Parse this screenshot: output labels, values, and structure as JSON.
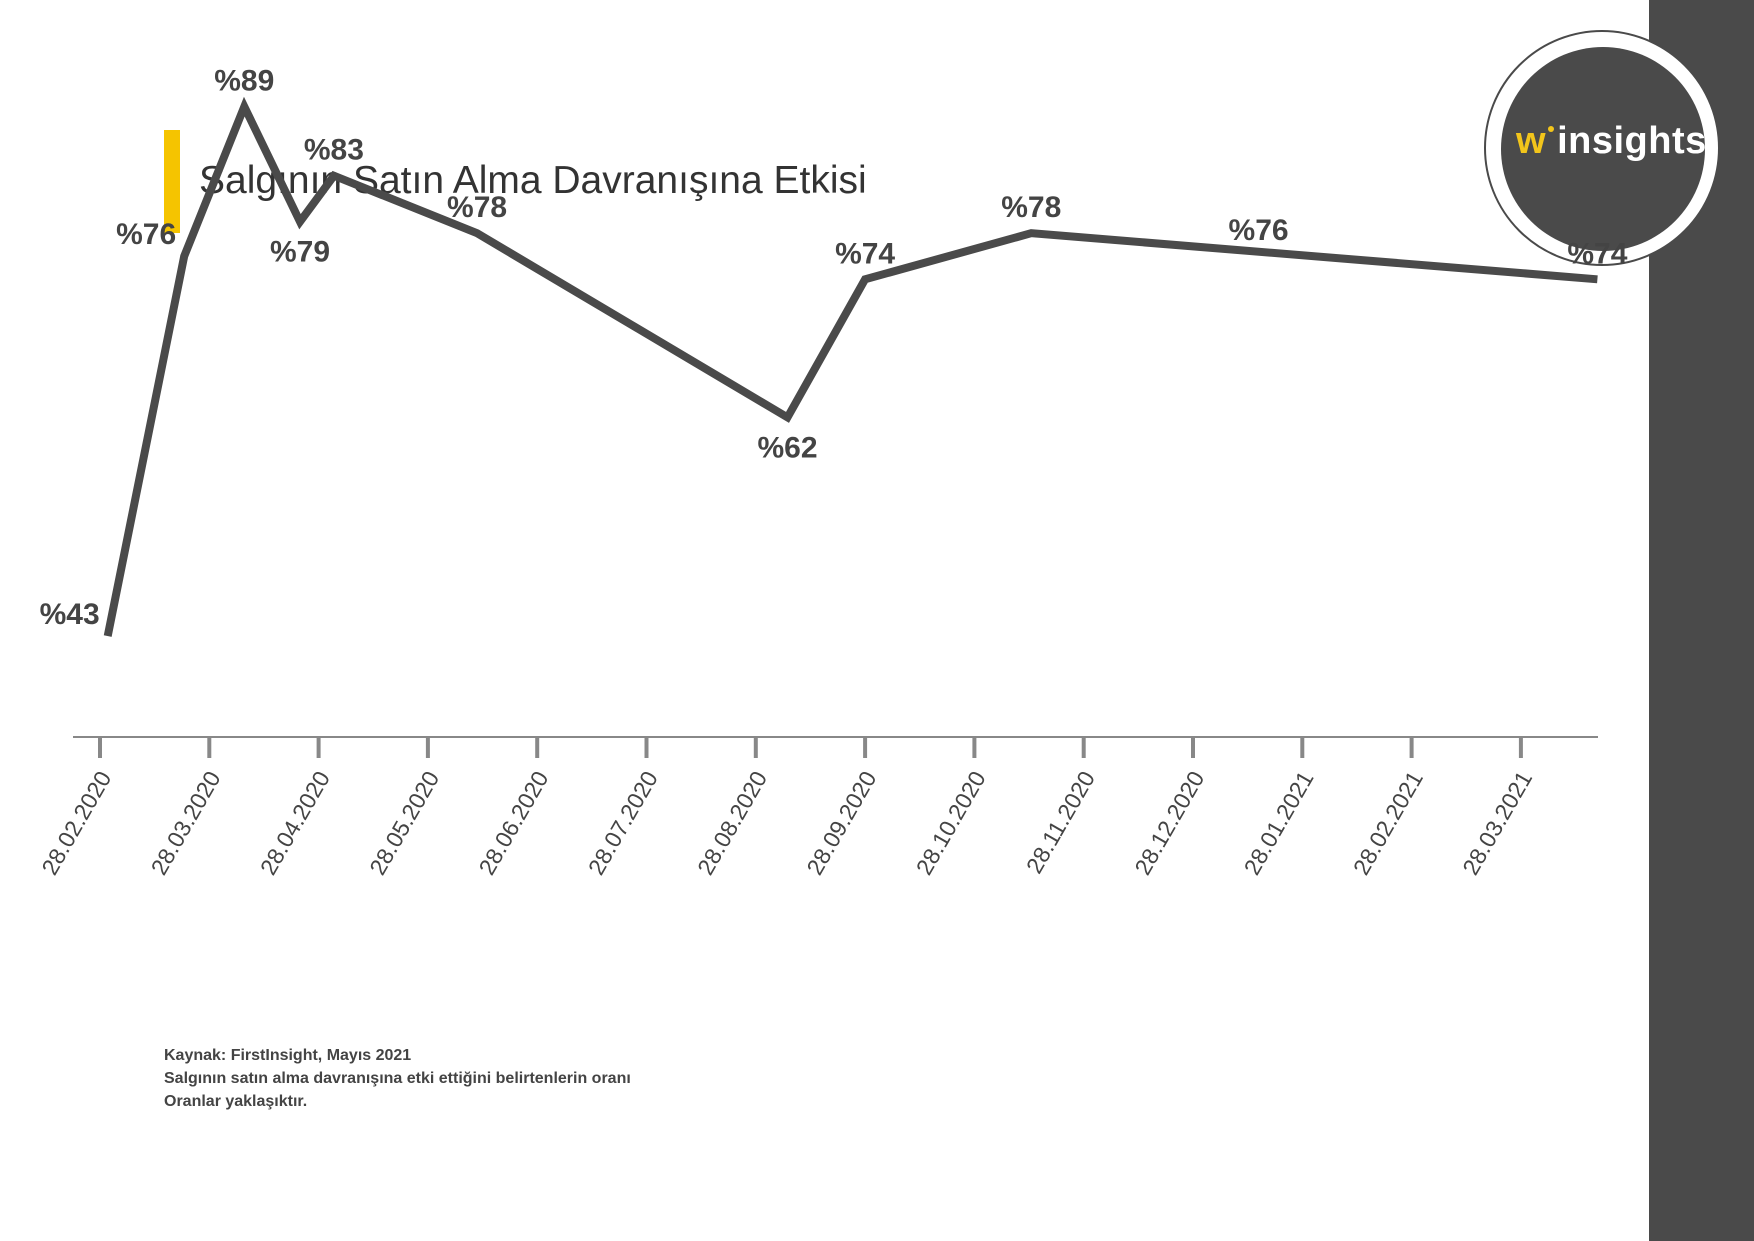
{
  "title": "Salgının Satın Alma Davranışına Etkisi",
  "logo": {
    "w": "w",
    "rest": "insights"
  },
  "footnote": [
    "Kaynak: FirstInsight, Mayıs 2021",
    "Salgının satın alma davranışına etki ettiğini belirtenlerin oranı",
    "Oranlar yaklaşıktır."
  ],
  "colors": {
    "line": "#4a4a4a",
    "accent": "#f5c400",
    "axis": "#888888",
    "text": "#444444"
  },
  "chart_data": {
    "type": "line",
    "title": "Salgının Satın Alma Davranışına Etkisi",
    "xlabel": "",
    "ylabel": "",
    "grid": false,
    "ylim": [
      0,
      100
    ],
    "x_ticks": [
      "28.02.2020",
      "28.03.2020",
      "28.04.2020",
      "28.05.2020",
      "28.06.2020",
      "28.07.2020",
      "28.08.2020",
      "28.09.2020",
      "28.10.2020",
      "28.11.2020",
      "28.12.2020",
      "28.01.2021",
      "28.02.2021",
      "28.03.2021"
    ],
    "series": [
      {
        "name": "Salgının satın alma davranışına etki ettiğini belirtenlerin oranı",
        "points": [
          {
            "t": 0.07,
            "value": 43,
            "label": "%43",
            "label_pos": "left"
          },
          {
            "t": 0.77,
            "value": 76,
            "label": "%76",
            "label_pos": "left"
          },
          {
            "t": 1.32,
            "value": 89,
            "label": "%89",
            "label_pos": "above"
          },
          {
            "t": 1.83,
            "value": 79,
            "label": "%79",
            "label_pos": "below"
          },
          {
            "t": 2.14,
            "value": 83,
            "label": "%83",
            "label_pos": "above"
          },
          {
            "t": 3.45,
            "value": 78,
            "label": "%78",
            "label_pos": "above"
          },
          {
            "t": 6.29,
            "value": 62,
            "label": "%62",
            "label_pos": "below"
          },
          {
            "t": 7.0,
            "value": 74,
            "label": "%74",
            "label_pos": "above"
          },
          {
            "t": 8.52,
            "value": 78,
            "label": "%78",
            "label_pos": "above"
          },
          {
            "t": 13.7,
            "value": 74,
            "label": "%74",
            "label_pos": "above"
          }
        ],
        "extra_labels": [
          {
            "t": 10.6,
            "value": 76,
            "label": "%76"
          }
        ]
      }
    ]
  }
}
